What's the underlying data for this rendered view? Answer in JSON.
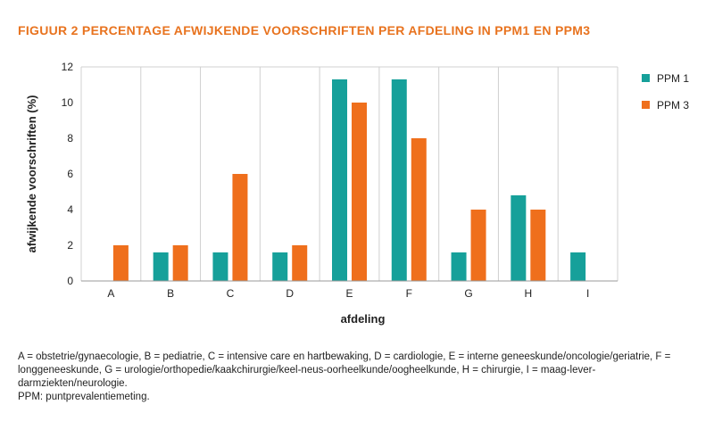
{
  "figure": {
    "title": "FIGUUR 2  PERCENTAGE AFWIJKENDE VOORSCHRIFTEN PER AFDELING IN PPM1 EN PPM3",
    "caption": "A = obstetrie/gynaecologie, B = pediatrie, C = intensive care en hartbewaking, D = cardiologie, E = interne geneeskunde/oncologie/geriatrie, F = longgeneeskunde, G = urologie/orthopedie/kaakchirurgie/keel-neus-oorheelkunde/oogheelkunde, H = chirurgie, I = maag-lever-darmziekten/neurologie.",
    "note": "PPM: puntprevalentiemeting."
  },
  "colors": {
    "ppm1": "#16a09a",
    "ppm3": "#ef6f1c",
    "title": "#e8731f",
    "grid": "#d0d0d0"
  },
  "chart_data": {
    "type": "bar",
    "title": "FIGUUR 2  PERCENTAGE AFWIJKENDE VOORSCHRIFTEN PER AFDELING IN PPM1 EN PPM3",
    "xlabel": "afdeling",
    "ylabel": "afwijkende voorschriften (%)",
    "ylim": [
      0,
      12
    ],
    "yticks": [
      0,
      2,
      4,
      6,
      8,
      10,
      12
    ],
    "categories": [
      "A",
      "B",
      "C",
      "D",
      "E",
      "F",
      "G",
      "H",
      "I"
    ],
    "series": [
      {
        "name": "PPM 1",
        "color": "#16a09a",
        "values": [
          0,
          1.6,
          1.6,
          1.6,
          11.3,
          11.3,
          1.6,
          4.8,
          1.6
        ]
      },
      {
        "name": "PPM 3",
        "color": "#ef6f1c",
        "values": [
          2,
          2,
          6,
          2,
          10,
          8,
          4,
          4,
          0
        ]
      }
    ],
    "grid": "vertical category separators",
    "legend": "top-right"
  }
}
